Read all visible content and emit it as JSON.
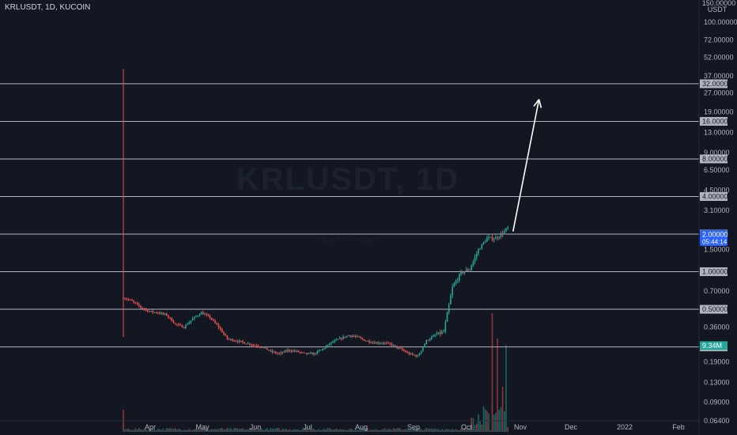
{
  "header": {
    "symbol": "KRLUSDT, 1D, KUCOIN",
    "watermark": "KRLUSDT, 1D",
    "watermark_sub": "Kryll / Tether"
  },
  "colors": {
    "background": "#131722",
    "up": "#26a69a",
    "down": "#ef5350",
    "line": "#b2b5be",
    "arrow": "#ffffff",
    "price_tag": "#2962ff",
    "volume_tag": "#26a69a"
  },
  "price_axis": {
    "unit": "USDT",
    "top_label": "150.00000",
    "labels": [
      "100.00000",
      "72.00000",
      "52.00000",
      "37.00000",
      "27.00000",
      "19.00000",
      "13.00000",
      "9.00000",
      "6.50000",
      "4.50000",
      "3.10000",
      "1.50000",
      "0.70000",
      "0.36000",
      "0.19000",
      "0.13000",
      "0.09000",
      "0.06400"
    ],
    "scale": "log"
  },
  "time_axis": {
    "labels": [
      "Apr",
      "May",
      "Jun",
      "Jul",
      "Aug",
      "Sep",
      "Oct",
      "Nov",
      "Dec",
      "2022",
      "Feb"
    ]
  },
  "horizontal_levels": [
    "32.00000",
    "16.00000",
    "8.00000",
    "4.00000",
    "2.00000",
    "1.00000",
    "0.50000",
    "0.25000"
  ],
  "price_tag": {
    "price": "2.00000",
    "countdown": "05:44:14"
  },
  "volume_tag": "9.34M",
  "chart_data": {
    "type": "candlestick",
    "title": "KRLUSDT, 1D, KUCOIN",
    "yscale": "log",
    "ylim": [
      0.064,
      150
    ],
    "time_range": [
      "Mar 23",
      "Feb 20"
    ],
    "x_tick_labels": [
      "Apr",
      "May",
      "Jun",
      "Jul",
      "Aug",
      "Sep",
      "Oct",
      "Nov",
      "Dec",
      "2022",
      "Feb"
    ],
    "levels": [
      32,
      16,
      8,
      4,
      2,
      1,
      0.5,
      0.25
    ],
    "price_path_days": [
      0,
      5,
      10,
      15,
      20,
      25,
      30,
      35,
      40,
      45,
      50,
      55,
      60,
      65,
      70,
      75,
      80,
      85,
      90,
      95,
      100,
      105,
      110,
      115,
      120,
      125,
      130,
      135,
      140,
      145,
      150,
      155,
      160,
      165,
      170,
      175,
      180,
      185,
      190,
      195,
      200,
      205,
      210,
      215,
      220,
      222
    ],
    "price_path_values": [
      0.62,
      0.58,
      0.52,
      0.48,
      0.47,
      0.45,
      0.38,
      0.36,
      0.42,
      0.47,
      0.43,
      0.36,
      0.29,
      0.28,
      0.27,
      0.26,
      0.25,
      0.23,
      0.22,
      0.235,
      0.23,
      0.22,
      0.22,
      0.24,
      0.27,
      0.29,
      0.31,
      0.3,
      0.28,
      0.27,
      0.27,
      0.26,
      0.24,
      0.22,
      0.21,
      0.28,
      0.31,
      0.33,
      0.75,
      0.98,
      1.05,
      1.5,
      1.85,
      1.85,
      2.1,
      2.25
    ],
    "volume_unit": "M",
    "volume_tag_value": 9.34,
    "spike_at_day": 0,
    "spike_high": 42,
    "spike_low": 0.3,
    "arrow_from": {
      "day": 225,
      "price": 2.1
    },
    "arrow_to": {
      "day": 240,
      "price": 24
    }
  }
}
